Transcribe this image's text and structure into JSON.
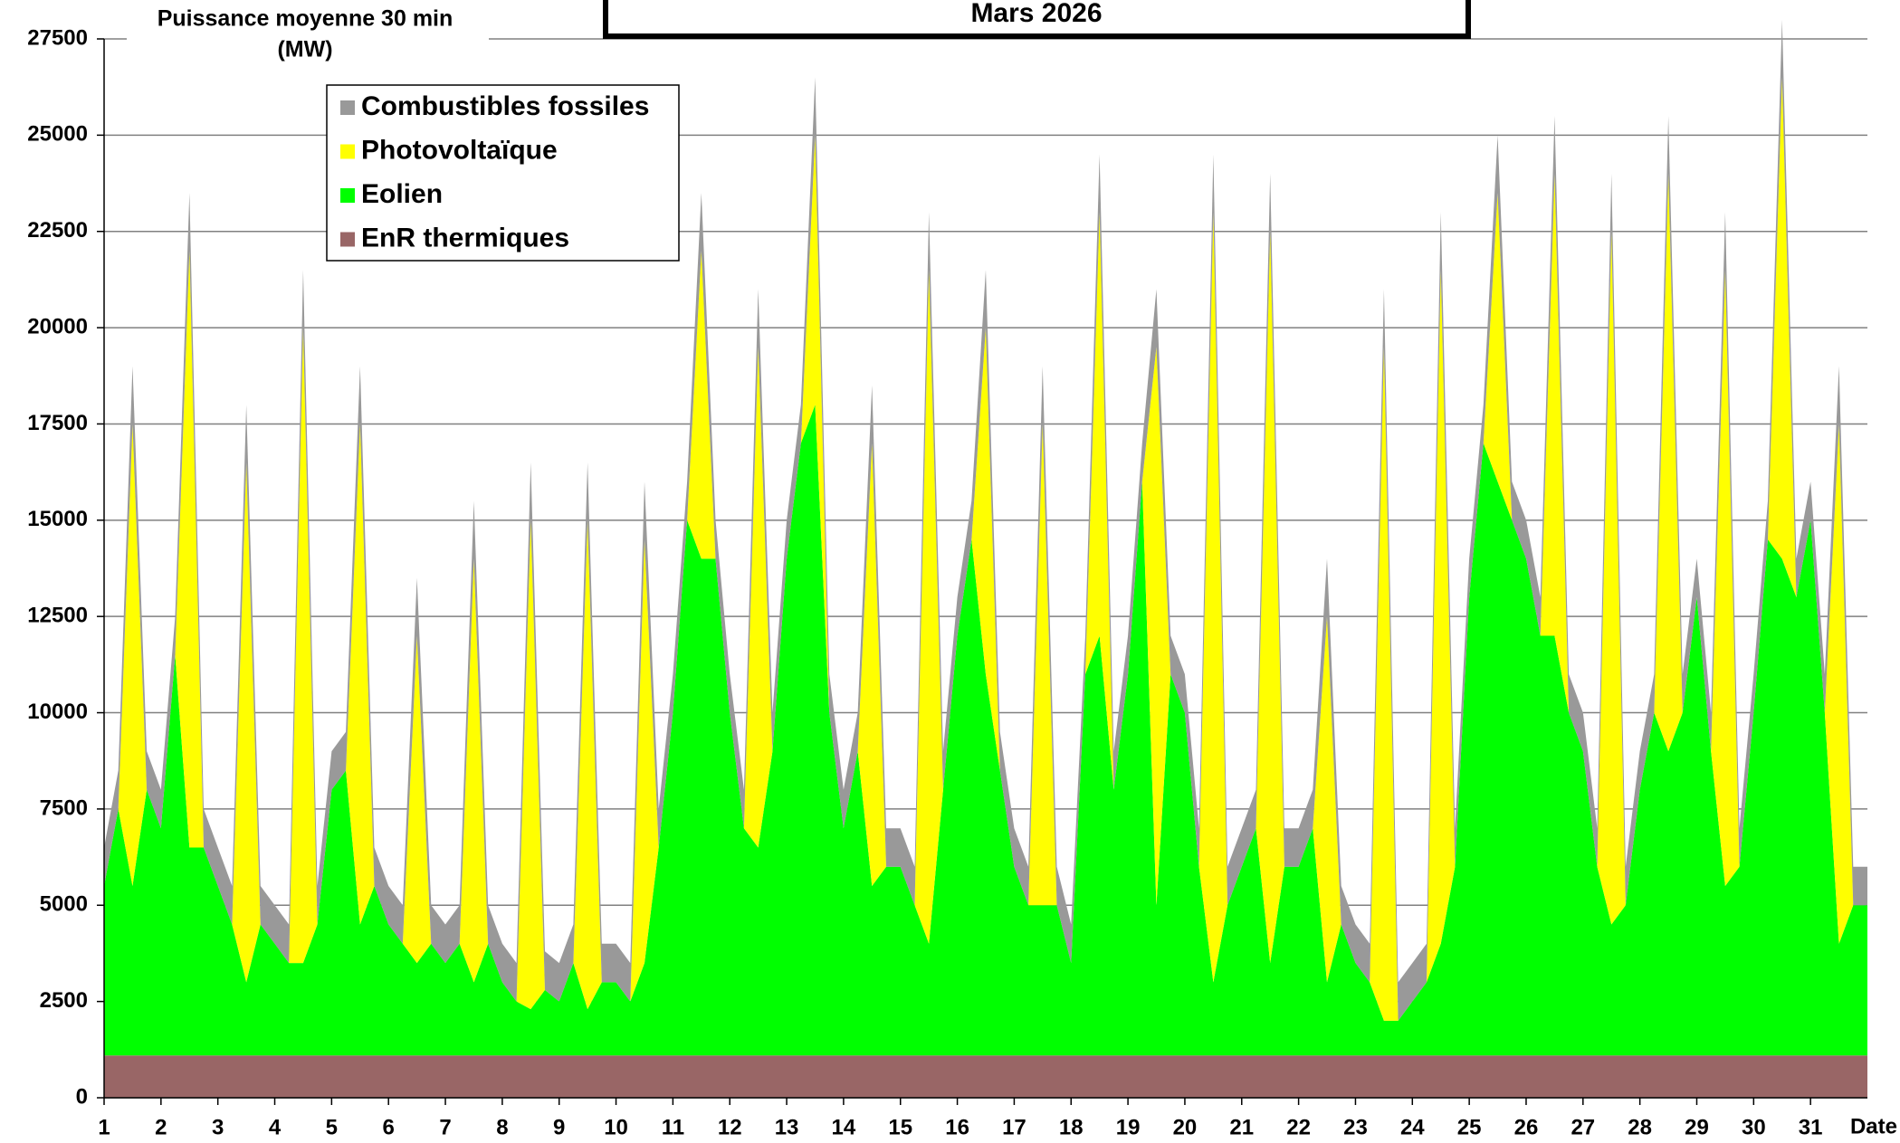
{
  "chart_data": {
    "type": "stacked_area",
    "title": "Mars 2026",
    "y_label": [
      "Puissance moyenne 30 min",
      "(MW)"
    ],
    "x_label": "Date",
    "xlim": [
      1,
      32
    ],
    "xticks": [
      1,
      2,
      3,
      4,
      5,
      6,
      7,
      8,
      9,
      10,
      11,
      12,
      13,
      14,
      15,
      16,
      17,
      18,
      19,
      20,
      21,
      22,
      23,
      24,
      25,
      26,
      27,
      28,
      29,
      30,
      31
    ],
    "ylim": [
      0,
      27500
    ],
    "yticks": [
      0,
      2500,
      5000,
      7500,
      10000,
      12500,
      15000,
      17500,
      20000,
      22500,
      25000,
      27500
    ],
    "grid": true,
    "legend": "upper left",
    "x": [
      1,
      1.25,
      1.5,
      1.75,
      2,
      2.25,
      2.5,
      2.75,
      3,
      3.25,
      3.5,
      3.75,
      4,
      4.25,
      4.5,
      4.75,
      5,
      5.25,
      5.5,
      5.75,
      6,
      6.25,
      6.5,
      6.75,
      7,
      7.25,
      7.5,
      7.75,
      8,
      8.25,
      8.5,
      8.75,
      9,
      9.25,
      9.5,
      9.75,
      10,
      10.25,
      10.5,
      10.75,
      11,
      11.25,
      11.5,
      11.75,
      12,
      12.25,
      12.5,
      12.75,
      13,
      13.25,
      13.5,
      13.75,
      14,
      14.25,
      14.5,
      14.75,
      15,
      15.25,
      15.5,
      15.75,
      16,
      16.25,
      16.5,
      16.75,
      17,
      17.25,
      17.5,
      17.75,
      18,
      18.25,
      18.5,
      18.75,
      19,
      19.25,
      19.5,
      19.75,
      20,
      20.25,
      20.5,
      20.75,
      21,
      21.25,
      21.5,
      21.75,
      22,
      22.25,
      22.5,
      22.75,
      23,
      23.25,
      23.5,
      23.75,
      24,
      24.25,
      24.5,
      24.75,
      25,
      25.25,
      25.5,
      25.75,
      26,
      26.25,
      26.5,
      26.75,
      27,
      27.25,
      27.5,
      27.75,
      28,
      28.25,
      28.5,
      28.75,
      29,
      29.25,
      29.5,
      29.75,
      30,
      30.25,
      30.5,
      30.75,
      31,
      31.25,
      31.5,
      31.75,
      32
    ],
    "series": [
      {
        "name": "EnR thermiques",
        "color": "#996666",
        "values": [
          1100,
          1100,
          1100,
          1100,
          1100,
          1100,
          1100,
          1100,
          1100,
          1100,
          1100,
          1100,
          1100,
          1100,
          1100,
          1100,
          1100,
          1100,
          1100,
          1100,
          1100,
          1100,
          1100,
          1100,
          1100,
          1100,
          1100,
          1100,
          1100,
          1100,
          1100,
          1100,
          1100,
          1100,
          1100,
          1100,
          1100,
          1100,
          1100,
          1100,
          1100,
          1100,
          1100,
          1100,
          1100,
          1100,
          1100,
          1100,
          1100,
          1100,
          1100,
          1100,
          1100,
          1100,
          1100,
          1100,
          1100,
          1100,
          1100,
          1100,
          1100,
          1100,
          1100,
          1100,
          1100,
          1100,
          1100,
          1100,
          1100,
          1100,
          1100,
          1100,
          1100,
          1100,
          1100,
          1100,
          1100,
          1100,
          1100,
          1100,
          1100,
          1100,
          1100,
          1100,
          1100,
          1100,
          1100,
          1100,
          1100,
          1100,
          1100,
          1100,
          1100,
          1100,
          1100,
          1100,
          1100,
          1100,
          1100,
          1100,
          1100,
          1100,
          1100,
          1100,
          1100,
          1100,
          1100,
          1100,
          1100,
          1100,
          1100,
          1100,
          1100,
          1100,
          1100,
          1100,
          1100,
          1100,
          1100,
          1100,
          1100,
          1100,
          1100,
          1100,
          1100
        ]
      },
      {
        "name": "Eolien",
        "color": "#00ff00",
        "values": [
          4400,
          6400,
          4400,
          6900,
          5900,
          10400,
          5400,
          5400,
          4400,
          3400,
          1900,
          3400,
          2900,
          2400,
          2400,
          3400,
          6900,
          7400,
          3400,
          4400,
          3400,
          2900,
          2400,
          2900,
          2400,
          2900,
          1900,
          2900,
          1900,
          1400,
          1200,
          1700,
          1400,
          2400,
          1200,
          1900,
          1900,
          1400,
          2400,
          5400,
          8900,
          13900,
          12900,
          12900,
          8900,
          5900,
          5400,
          7900,
          12900,
          15900,
          16900,
          8900,
          5900,
          7900,
          4400,
          4900,
          4900,
          3900,
          2900,
          6900,
          10900,
          13400,
          9900,
          7400,
          4900,
          3900,
          3900,
          3900,
          2400,
          9900,
          10900,
          6900,
          9900,
          14900,
          3900,
          9900,
          8900,
          4900,
          1900,
          3900,
          4900,
          5900,
          2400,
          4900,
          4900,
          5900,
          1900,
          3400,
          2400,
          1900,
          900,
          900,
          1400,
          1900,
          2900,
          4900,
          11900,
          15900,
          14900,
          13900,
          12900,
          10900,
          10900,
          8900,
          7900,
          4900,
          3400,
          3900,
          6900,
          8900,
          7900,
          8900,
          11900,
          7900,
          4400,
          4900,
          8900,
          13400,
          12900,
          11900,
          13900,
          8900,
          2900,
          3900,
          3900
        ]
      },
      {
        "name": "Photovoltaïque",
        "color": "#ffff00",
        "values": [
          0,
          0,
          12000,
          0,
          0,
          0,
          15500,
          0,
          0,
          0,
          13500,
          0,
          0,
          0,
          16500,
          0,
          0,
          0,
          13000,
          0,
          0,
          0,
          8500,
          0,
          0,
          0,
          11000,
          0,
          0,
          0,
          12700,
          0,
          0,
          0,
          12700,
          0,
          0,
          0,
          11000,
          0,
          0,
          0,
          8000,
          0,
          0,
          0,
          13000,
          0,
          0,
          0,
          7000,
          0,
          0,
          0,
          11500,
          0,
          0,
          0,
          17500,
          0,
          0,
          0,
          9000,
          0,
          0,
          0,
          12500,
          0,
          0,
          0,
          11000,
          0,
          0,
          0,
          14500,
          0,
          0,
          0,
          20000,
          0,
          0,
          0,
          19000,
          0,
          0,
          0,
          9500,
          0,
          0,
          0,
          17500,
          0,
          0,
          0,
          17500,
          0,
          0,
          0,
          7500,
          0,
          0,
          0,
          12000,
          0,
          0,
          0,
          18000,
          0,
          0,
          0,
          15000,
          0,
          0,
          0,
          16000,
          0,
          0,
          0,
          12500,
          0,
          0,
          0,
          13500,
          0,
          0
        ]
      },
      {
        "name": "Combustibles fossiles",
        "color": "#999999",
        "values": [
          1000,
          1000,
          1500,
          1000,
          1000,
          1000,
          1500,
          1000,
          1000,
          1000,
          1500,
          1000,
          1000,
          1000,
          1500,
          1000,
          1000,
          1000,
          1500,
          1000,
          1000,
          1000,
          1500,
          1000,
          1000,
          1000,
          1500,
          1000,
          1000,
          1000,
          1500,
          1000,
          1000,
          1000,
          1500,
          1000,
          1000,
          1000,
          1500,
          1000,
          1000,
          1000,
          1500,
          1000,
          1000,
          1000,
          1500,
          1000,
          1000,
          1000,
          1500,
          1000,
          1000,
          1000,
          1500,
          1000,
          1000,
          1000,
          1500,
          1000,
          1000,
          1000,
          1500,
          1000,
          1000,
          1000,
          1500,
          1000,
          1000,
          1000,
          1500,
          1000,
          1000,
          1000,
          1500,
          1000,
          1000,
          1000,
          1500,
          1000,
          1000,
          1000,
          1500,
          1000,
          1000,
          1000,
          1500,
          1000,
          1000,
          1000,
          1500,
          1000,
          1000,
          1000,
          1500,
          1000,
          1000,
          1000,
          1500,
          1000,
          1000,
          1000,
          1500,
          1000,
          1000,
          1000,
          1500,
          1000,
          1000,
          1000,
          1500,
          1000,
          1000,
          1000,
          1500,
          1000,
          1000,
          1000,
          1500,
          1000,
          1000,
          1000,
          1500,
          1000,
          1000
        ]
      }
    ]
  }
}
